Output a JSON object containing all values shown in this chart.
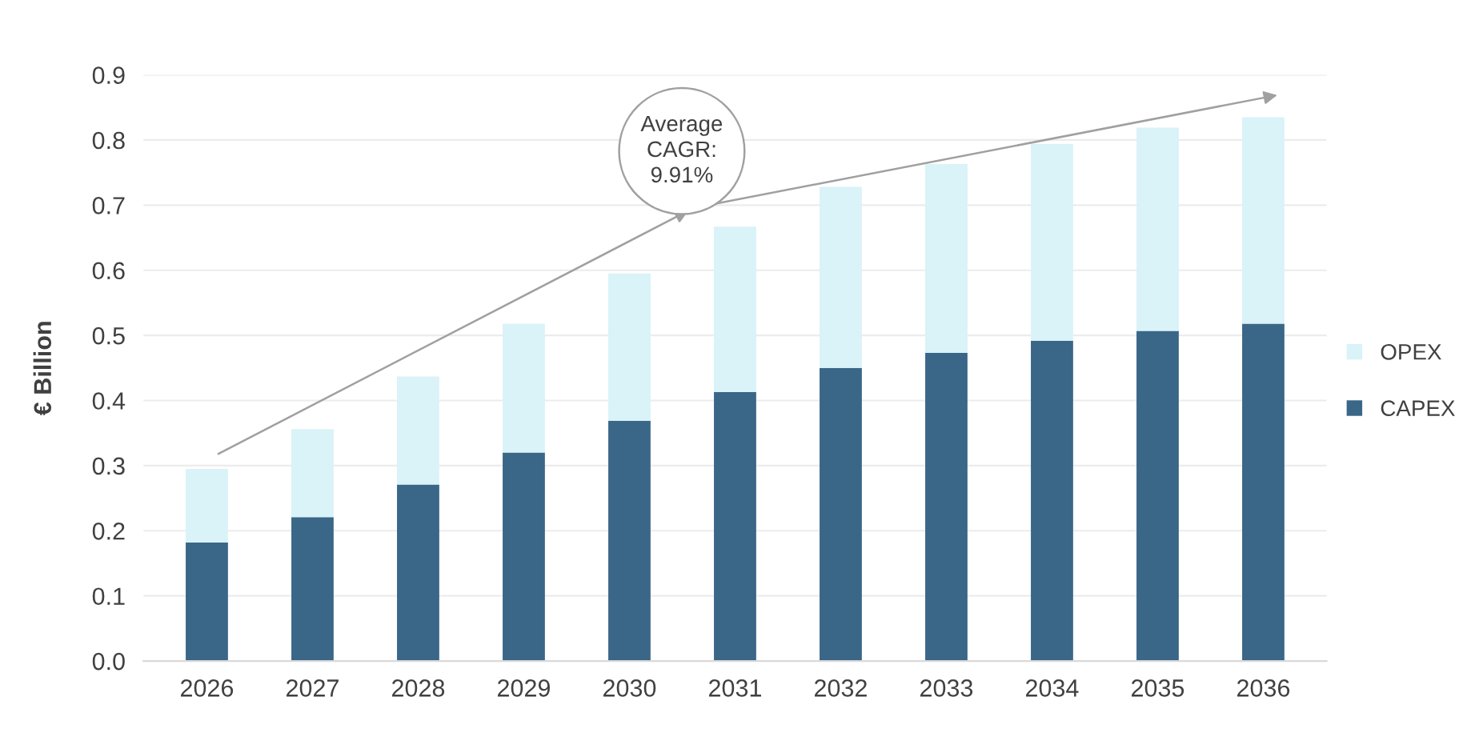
{
  "chart_data": {
    "type": "bar",
    "stacked": true,
    "ylabel": "€ Billion",
    "categories": [
      "2026",
      "2027",
      "2028",
      "2029",
      "2030",
      "2031",
      "2032",
      "2033",
      "2034",
      "2035",
      "2036"
    ],
    "series": [
      {
        "name": "CAPEX",
        "color": "#3a6688",
        "values": [
          0.182,
          0.221,
          0.271,
          0.32,
          0.369,
          0.413,
          0.45,
          0.473,
          0.492,
          0.507,
          0.518
        ]
      },
      {
        "name": "OPEX",
        "color": "#d9f3f8",
        "values": [
          0.113,
          0.135,
          0.166,
          0.198,
          0.226,
          0.254,
          0.278,
          0.29,
          0.302,
          0.312,
          0.317
        ]
      }
    ],
    "ylim": [
      0,
      0.9
    ],
    "yticks": [
      {
        "value": 0,
        "label": "0.0"
      },
      0.1,
      0.2,
      0.3,
      0.4,
      0.5,
      0.6,
      0.7,
      0.8,
      0.9
    ],
    "grid": "y",
    "legend": "right",
    "annotations": [
      "Average\nCAGR:\n9.91%"
    ]
  }
}
